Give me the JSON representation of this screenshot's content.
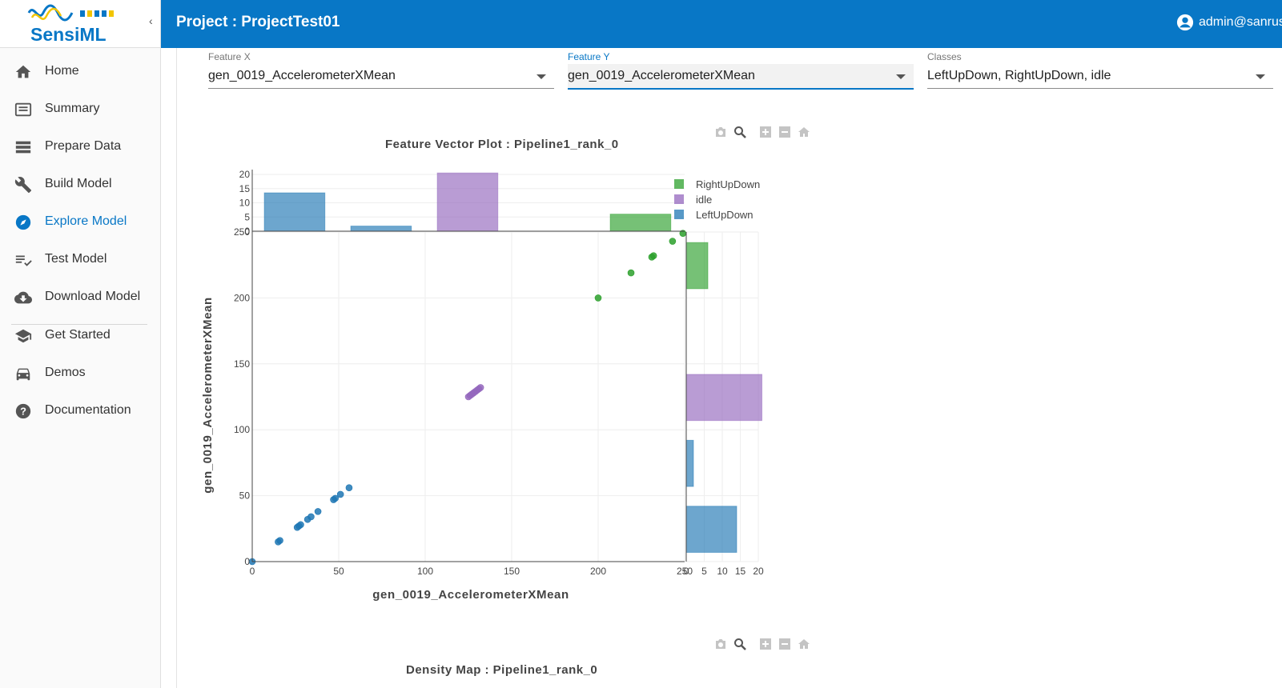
{
  "app": {
    "logo_text": "SensiML",
    "project_title": "Project : ProjectTest01",
    "user": "admin@sanrus"
  },
  "sidebar": {
    "items": [
      {
        "label": "Home",
        "icon": "home-icon",
        "active": false
      },
      {
        "label": "Summary",
        "icon": "summary-icon",
        "active": false
      },
      {
        "label": "Prepare Data",
        "icon": "list-icon",
        "active": false
      },
      {
        "label": "Build Model",
        "icon": "wrench-icon",
        "active": false
      },
      {
        "label": "Explore Model",
        "icon": "compass-icon",
        "active": true
      },
      {
        "label": "Test Model",
        "icon": "playlist-check-icon",
        "active": false
      },
      {
        "label": "Download Model",
        "icon": "cloud-download-icon",
        "active": false
      },
      {
        "label": "Get Started",
        "icon": "school-icon",
        "active": false
      },
      {
        "label": "Demos",
        "icon": "car-icon",
        "active": false
      },
      {
        "label": "Documentation",
        "icon": "help-icon",
        "active": false
      }
    ]
  },
  "filters": {
    "feature_x": {
      "label": "Feature X",
      "value": "gen_0019_AccelerometerXMean"
    },
    "feature_y": {
      "label": "Feature Y",
      "value": "gen_0019_AccelerometerXMean"
    },
    "classes": {
      "label": "Classes",
      "value": "LeftUpDown, RightUpDown, idle"
    }
  },
  "plot1": {
    "title": "Feature Vector Plot : Pipeline1_rank_0"
  },
  "plot2": {
    "title": "Density Map : Pipeline1_rank_0"
  },
  "colors": {
    "RightUpDown": "#2ca02c",
    "idle": "#9467bd",
    "LeftUpDown": "#1f77b4",
    "accent": "#0877c6"
  },
  "chart_data": {
    "type": "scatter",
    "xlabel": "gen_0019_AccelerometerXMean",
    "ylabel": "gen_0019_AccelerometerXMean",
    "xlim": [
      0,
      250
    ],
    "ylim": [
      0,
      250
    ],
    "x_ticks": [
      0,
      50,
      100,
      150,
      200,
      250
    ],
    "y_ticks": [
      0,
      50,
      100,
      150,
      200,
      250
    ],
    "legend_position": "top-right",
    "series": [
      {
        "name": "RightUpDown",
        "color": "#2ca02c",
        "points": [
          [
            200,
            200
          ],
          [
            219,
            219
          ],
          [
            231,
            231
          ],
          [
            232,
            232
          ],
          [
            243,
            243
          ],
          [
            249,
            249
          ]
        ]
      },
      {
        "name": "idle",
        "color": "#9467bd",
        "points": [
          [
            125,
            125
          ],
          [
            126,
            126
          ],
          [
            127,
            127
          ],
          [
            128,
            128
          ],
          [
            129,
            129
          ],
          [
            130,
            130
          ],
          [
            131,
            131
          ],
          [
            132,
            132
          ]
        ]
      },
      {
        "name": "LeftUpDown",
        "color": "#1f77b4",
        "points": [
          [
            0,
            0
          ],
          [
            15,
            15
          ],
          [
            16,
            16
          ],
          [
            26,
            26
          ],
          [
            27,
            27
          ],
          [
            28,
            28
          ],
          [
            32,
            32
          ],
          [
            34,
            34
          ],
          [
            38,
            38
          ],
          [
            47,
            47
          ],
          [
            48,
            48
          ],
          [
            51,
            51
          ],
          [
            56,
            56
          ]
        ]
      }
    ],
    "top_histogram": {
      "y_ticks": [
        0,
        5,
        10,
        15,
        20
      ],
      "y_max": 20,
      "bins": [
        {
          "series": "LeftUpDown",
          "x0": 7,
          "x1": 42,
          "count": 13.5
        },
        {
          "series": "LeftUpDown",
          "x0": 57,
          "x1": 92,
          "count": 1.8
        },
        {
          "series": "idle",
          "x0": 107,
          "x1": 142,
          "count": 20.5
        },
        {
          "series": "RightUpDown",
          "x0": 207,
          "x1": 242,
          "count": 6
        }
      ]
    },
    "right_histogram": {
      "x_ticks": [
        0,
        5,
        10,
        15,
        20
      ],
      "x_max": 20,
      "bins": [
        {
          "series": "RightUpDown",
          "y0": 207,
          "y1": 242,
          "count": 6
        },
        {
          "series": "idle",
          "y0": 107,
          "y1": 142,
          "count": 21
        },
        {
          "series": "LeftUpDown",
          "y0": 57,
          "y1": 92,
          "count": 2
        },
        {
          "series": "LeftUpDown",
          "y0": 7,
          "y1": 42,
          "count": 14
        }
      ]
    }
  }
}
